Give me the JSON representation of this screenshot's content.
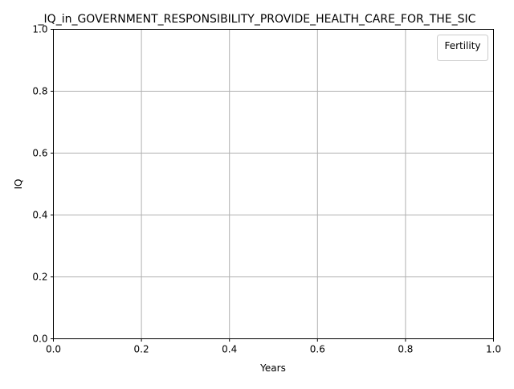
{
  "chart_data": {
    "type": "line",
    "title": "_IQ_in_GOVERNMENT_RESPONSIBILITY_PROVIDE_HEALTH_CARE_FOR_THE_SIC",
    "xlabel": "Years",
    "ylabel": "IQ",
    "xlim": [
      0,
      1
    ],
    "ylim": [
      0,
      1
    ],
    "x_ticks": [
      "0.0",
      "0.2",
      "0.4",
      "0.6",
      "0.8",
      "1.0"
    ],
    "y_ticks": [
      "0.0",
      "0.2",
      "0.4",
      "0.6",
      "0.8",
      "1.0"
    ],
    "grid": true,
    "legend": {
      "title": "Fertility",
      "placement": "top-right",
      "entries": []
    },
    "series": []
  },
  "colors": {
    "grid": "#b0b0b0",
    "axes": "#000000",
    "background": "#ffffff",
    "legend_border": "#cccccc"
  }
}
